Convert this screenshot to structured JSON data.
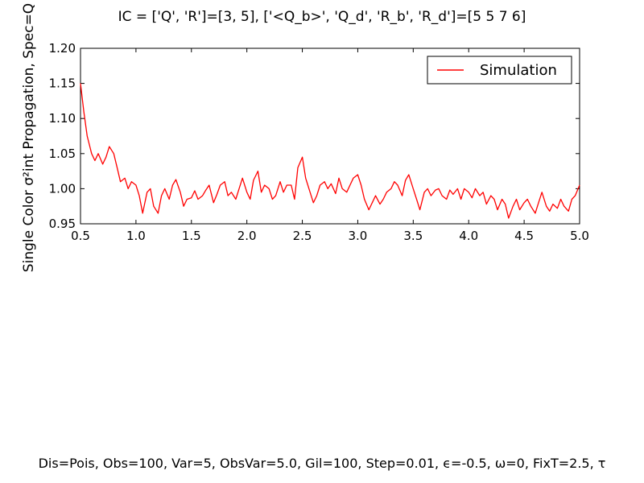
{
  "chart_data": {
    "type": "line",
    "title": "IC = ['Q', 'R']=[3, 5], ['<Q_b>', 'Q_d', 'R_b', 'R_d']=[5 5 7 6]",
    "xlabel": "",
    "ylabel": "Single Color σ²int Propagation, Spec=Q",
    "xlim": [
      0.5,
      5.0
    ],
    "ylim": [
      0.95,
      1.2
    ],
    "xticks": [
      "0.5",
      "1.0",
      "1.5",
      "2.0",
      "2.5",
      "3.0",
      "3.5",
      "4.0",
      "4.5",
      "5.0"
    ],
    "yticks": [
      "0.95",
      "1.00",
      "1.05",
      "1.10",
      "1.15",
      "1.20"
    ],
    "legend": {
      "location": "top-right",
      "entries": [
        "Simulation"
      ]
    },
    "series": [
      {
        "name": "Simulation",
        "color": "#ff0000",
        "x": [
          0.5,
          0.53,
          0.56,
          0.6,
          0.63,
          0.66,
          0.7,
          0.73,
          0.76,
          0.8,
          0.83,
          0.86,
          0.9,
          0.93,
          0.96,
          1.0,
          1.03,
          1.06,
          1.1,
          1.13,
          1.16,
          1.2,
          1.23,
          1.26,
          1.3,
          1.33,
          1.36,
          1.4,
          1.43,
          1.46,
          1.5,
          1.53,
          1.56,
          1.6,
          1.63,
          1.66,
          1.7,
          1.73,
          1.76,
          1.8,
          1.83,
          1.86,
          1.9,
          1.93,
          1.96,
          2.0,
          2.03,
          2.06,
          2.1,
          2.13,
          2.16,
          2.2,
          2.23,
          2.26,
          2.3,
          2.33,
          2.36,
          2.4,
          2.43,
          2.46,
          2.5,
          2.53,
          2.56,
          2.6,
          2.63,
          2.66,
          2.7,
          2.73,
          2.76,
          2.8,
          2.83,
          2.86,
          2.9,
          2.93,
          2.96,
          3.0,
          3.03,
          3.06,
          3.1,
          3.13,
          3.16,
          3.2,
          3.23,
          3.26,
          3.3,
          3.33,
          3.36,
          3.4,
          3.43,
          3.46,
          3.5,
          3.53,
          3.56,
          3.6,
          3.63,
          3.66,
          3.7,
          3.73,
          3.76,
          3.8,
          3.83,
          3.86,
          3.9,
          3.93,
          3.96,
          4.0,
          4.03,
          4.06,
          4.1,
          4.13,
          4.16,
          4.2,
          4.23,
          4.26,
          4.3,
          4.33,
          4.36,
          4.4,
          4.43,
          4.46,
          4.5,
          4.53,
          4.56,
          4.6,
          4.63,
          4.66,
          4.7,
          4.73,
          4.76,
          4.8,
          4.83,
          4.86,
          4.9,
          4.93,
          4.96,
          5.0
        ],
        "y": [
          1.15,
          1.11,
          1.075,
          1.05,
          1.04,
          1.05,
          1.035,
          1.045,
          1.06,
          1.05,
          1.03,
          1.01,
          1.015,
          1.0,
          1.01,
          1.005,
          0.99,
          0.965,
          0.995,
          1.0,
          0.975,
          0.965,
          0.99,
          1.0,
          0.985,
          1.005,
          1.013,
          0.995,
          0.975,
          0.985,
          0.987,
          0.997,
          0.985,
          0.99,
          0.998,
          1.005,
          0.98,
          0.992,
          1.005,
          1.01,
          0.99,
          0.995,
          0.985,
          1.0,
          1.015,
          0.995,
          0.985,
          1.012,
          1.025,
          0.995,
          1.005,
          1.0,
          0.985,
          0.99,
          1.01,
          0.995,
          1.005,
          1.005,
          0.985,
          1.03,
          1.045,
          1.015,
          1.0,
          0.98,
          0.99,
          1.005,
          1.01,
          1.0,
          1.007,
          0.993,
          1.015,
          1.0,
          0.995,
          1.005,
          1.015,
          1.02,
          1.005,
          0.985,
          0.97,
          0.98,
          0.99,
          0.978,
          0.985,
          0.995,
          1.0,
          1.01,
          1.005,
          0.99,
          1.012,
          1.02,
          1.0,
          0.985,
          0.97,
          0.995,
          1.0,
          0.99,
          0.998,
          1.0,
          0.99,
          0.985,
          0.998,
          0.992,
          1.0,
          0.985,
          1.0,
          0.995,
          0.987,
          1.0,
          0.99,
          0.995,
          0.978,
          0.99,
          0.985,
          0.97,
          0.985,
          0.978,
          0.958,
          0.975,
          0.985,
          0.97,
          0.98,
          0.985,
          0.975,
          0.965,
          0.98,
          0.995,
          0.975,
          0.968,
          0.978,
          0.972,
          0.985,
          0.975,
          0.968,
          0.985,
          0.99,
          1.005
        ]
      }
    ]
  },
  "footer": {
    "text": "Dis=Pois, Obs=100, Var=5, ObsVar=5.0, Gil=100, Step=0.01, ϵ=-0.5, ω=0, FixT=2.5, τ"
  }
}
